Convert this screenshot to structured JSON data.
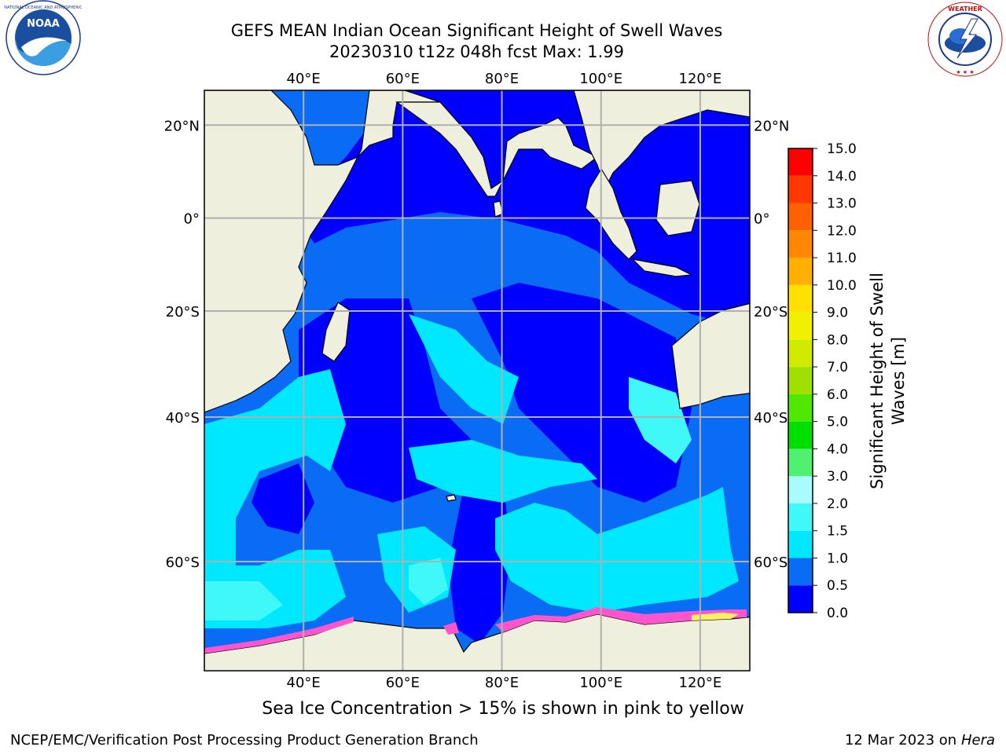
{
  "header": {
    "title_line1": "GEFS MEAN Indian Ocean Significant Height of Swell Waves",
    "title_line2": "20230310 t12z 048h fcst   Max: 1.99"
  },
  "logos": {
    "left": "noaa-logo",
    "right": "national-weather-service-logo"
  },
  "map": {
    "lon_ticks": [
      "40°E",
      "60°E",
      "80°E",
      "100°E",
      "120°E"
    ],
    "lon_values": [
      40,
      60,
      80,
      100,
      120
    ],
    "lat_ticks": [
      "20°N",
      "0°",
      "20°S",
      "40°S",
      "60°S"
    ],
    "lat_values": [
      20,
      0,
      -20,
      -40,
      -60
    ],
    "extent": {
      "lon": [
        20,
        130
      ],
      "lat": [
        -70,
        27
      ]
    },
    "colors": {
      "land": "#efefde",
      "coast": "#000000",
      "grid": "#b0b0b0",
      "ice_pink": "#ff55cc",
      "ice_yellow": "#ffee66"
    }
  },
  "colorbar": {
    "label": "Significant Height of Swell Waves [m]",
    "ticks": [
      "0.0",
      "0.5",
      "1.0",
      "1.5",
      "2.0",
      "3.0",
      "4.0",
      "5.0",
      "6.0",
      "7.0",
      "8.0",
      "9.0",
      "10.0",
      "11.0",
      "12.0",
      "13.0",
      "14.0",
      "15.0"
    ],
    "colors": [
      "#0000ff",
      "#0a6cf4",
      "#00e8ff",
      "#40f8f8",
      "#a8fcfc",
      "#50f070",
      "#00e000",
      "#50e800",
      "#a0e000",
      "#d0ea00",
      "#f0f000",
      "#ffe000",
      "#ffb000",
      "#ff8800",
      "#ff6000",
      "#ff3800",
      "#ff0000"
    ]
  },
  "ice_note": "Sea Ice Concentration > 15% is shown in pink to yellow",
  "footer": {
    "left": "NCEP/EMC/Verification Post Processing Product Generation Branch",
    "date": "12 Mar 2023 on",
    "host": "Hera"
  }
}
